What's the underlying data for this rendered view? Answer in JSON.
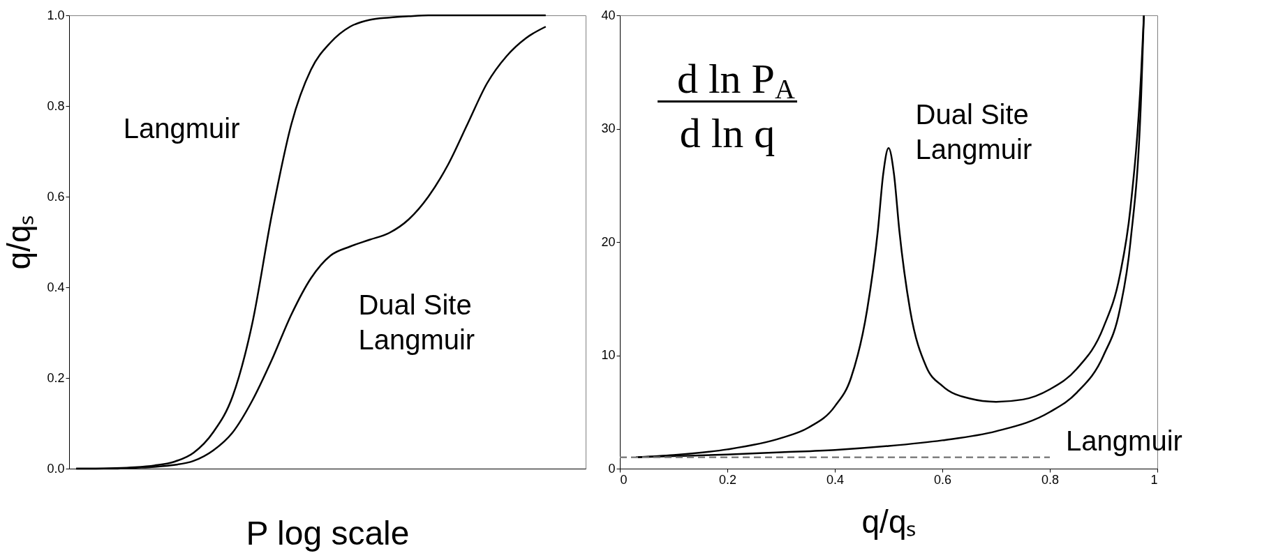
{
  "chart_data": [
    {
      "type": "line",
      "xlabel": "P log scale",
      "ylabel": "q/qₛ",
      "categories": [
        null,
        null,
        null,
        null,
        null,
        null,
        null,
        null,
        null,
        null,
        null,
        null,
        null,
        null,
        null,
        null,
        null,
        null,
        null,
        null,
        null,
        null,
        null,
        null,
        null
      ],
      "ylim": [
        0,
        1
      ],
      "yticks": [
        {
          "value": 0,
          "label": "0.0"
        },
        {
          "value": 0.2,
          "label": "0.2"
        },
        {
          "value": 0.4,
          "label": "0.4"
        },
        {
          "value": 0.6,
          "label": "0.6"
        },
        {
          "value": 0.8,
          "label": "0.8"
        },
        {
          "value": 1,
          "label": "1.0"
        }
      ],
      "tick_labels": "y",
      "grid": false,
      "legend": false,
      "series": [
        {
          "name": "Langmuir",
          "color": "#000000",
          "values": [
            0,
            0,
            0.001,
            0.003,
            0.007,
            0.015,
            0.035,
            0.08,
            0.16,
            0.32,
            0.56,
            0.76,
            0.88,
            0.94,
            0.975,
            0.99,
            0.995,
            0.998,
            1.0,
            1.0,
            1.0,
            1.0,
            1.0,
            1.0,
            1.0
          ]
        },
        {
          "name": "Dual Site Langmuir",
          "color": "#000000",
          "values": [
            0,
            0,
            0,
            0.002,
            0.004,
            0.008,
            0.017,
            0.04,
            0.08,
            0.15,
            0.24,
            0.34,
            0.42,
            0.47,
            0.49,
            0.505,
            0.52,
            0.55,
            0.6,
            0.67,
            0.76,
            0.85,
            0.91,
            0.95,
            0.975
          ]
        }
      ]
    },
    {
      "type": "line",
      "xlabel": "q/qₛ",
      "annotations": [
        "d ln P$_{A}$",
        "d ln q"
      ],
      "xlim": [
        0,
        1
      ],
      "xticks": [
        0,
        0.2,
        0.4,
        0.6,
        0.8,
        1
      ],
      "ylim": [
        0,
        40
      ],
      "yticks": [
        0,
        10,
        20,
        30,
        40
      ],
      "grid": false,
      "legend": false,
      "series": [
        {
          "name": "Dual Site Langmuir",
          "color": "#000000",
          "x": [
            0.03,
            0.1,
            0.2,
            0.3,
            0.35,
            0.4,
            0.43,
            0.46,
            0.48,
            0.49,
            0.5,
            0.51,
            0.52,
            0.54,
            0.57,
            0.6,
            0.65,
            0.7,
            0.75,
            0.8,
            0.85,
            0.9,
            0.93,
            0.95,
            0.97,
            0.975
          ],
          "values": [
            1,
            1.2,
            1.7,
            2.7,
            3.6,
            5.5,
            8,
            14,
            21,
            26,
            28.3,
            26,
            21,
            14,
            9,
            7.3,
            6.2,
            5.9,
            6.1,
            7,
            8.8,
            12.5,
            17,
            23,
            35,
            40
          ]
        },
        {
          "name": "Langmuir",
          "color": "#000000",
          "x": [
            0.03,
            0.1,
            0.2,
            0.3,
            0.4,
            0.5,
            0.6,
            0.7,
            0.8,
            0.85,
            0.9,
            0.93,
            0.95,
            0.97,
            0.975
          ],
          "values": [
            1,
            1.1,
            1.25,
            1.45,
            1.65,
            2,
            2.5,
            3.3,
            5,
            6.7,
            10,
            14,
            20,
            33,
            40
          ]
        },
        {
          "color": "#808080",
          "line_style": "dashed",
          "x": [
            0,
            0.8
          ],
          "values": [
            1,
            1
          ]
        }
      ]
    }
  ]
}
